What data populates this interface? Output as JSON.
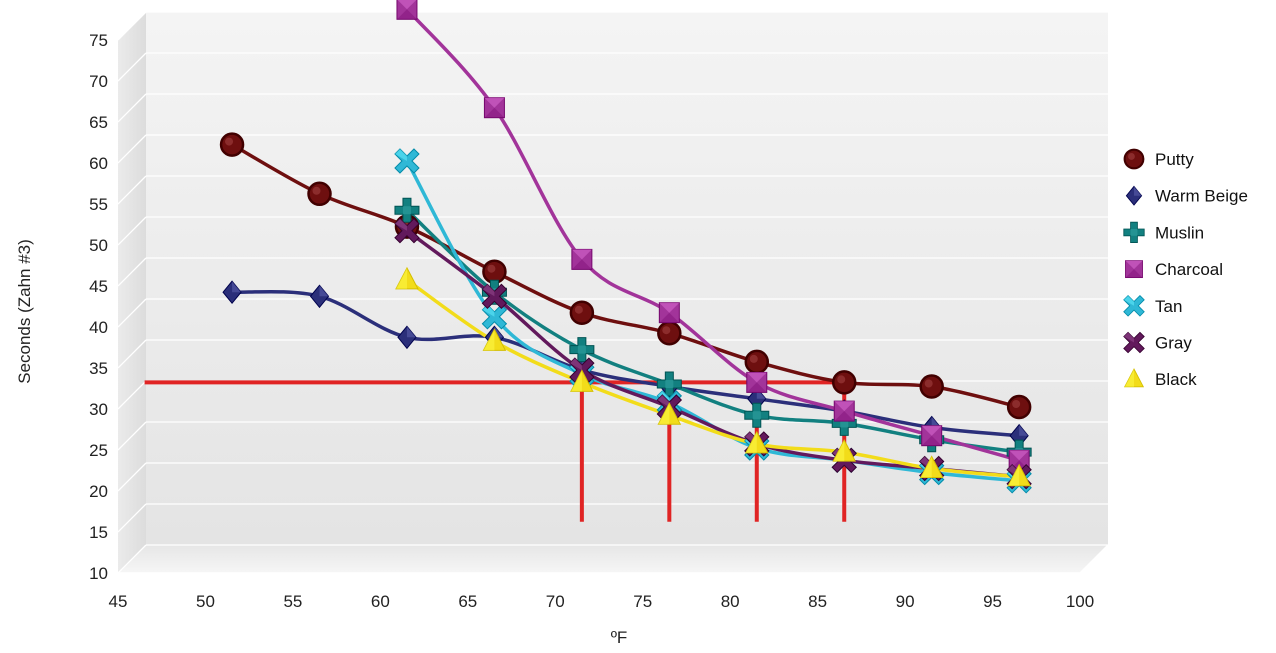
{
  "chart_data": {
    "type": "line",
    "title": "",
    "xlabel": "ºF",
    "ylabel": "Seconds (Zahn #3)",
    "xlim": [
      45,
      100
    ],
    "ylim": [
      10,
      75
    ],
    "x_ticks": [
      "45",
      "50",
      "55",
      "60",
      "65",
      "70",
      "75",
      "80",
      "85",
      "90",
      "95",
      "100"
    ],
    "y_ticks": [
      "10",
      "15",
      "20",
      "25",
      "30",
      "35",
      "40",
      "45",
      "50",
      "55",
      "60",
      "65",
      "70",
      "75"
    ],
    "grid": "horizontal",
    "legend_position": "right",
    "series": [
      {
        "name": "Putty",
        "color": "#6e0f0f",
        "marker": "circle",
        "x": [
          50,
          55,
          60,
          65,
          70,
          75,
          80,
          85,
          90,
          95
        ],
        "y": [
          59,
          53,
          49,
          43.5,
          38.5,
          36,
          32.5,
          30,
          29.5,
          27
        ]
      },
      {
        "name": "Warm Beige",
        "color": "#2b2f7a",
        "marker": "diamond",
        "x": [
          50,
          55,
          60,
          65,
          70,
          75,
          80,
          85,
          90,
          95
        ],
        "y": [
          41,
          40.5,
          35.5,
          35.5,
          31.5,
          29.5,
          28,
          26.5,
          24.5,
          23.5
        ]
      },
      {
        "name": "Muslin",
        "color": "#128080",
        "marker": "plus",
        "x": [
          60,
          65,
          70,
          75,
          80,
          85,
          90,
          95
        ],
        "y": [
          51,
          41,
          34,
          29.8,
          26,
          25,
          23,
          21.5
        ]
      },
      {
        "name": "Charcoal",
        "color": "#a2349a",
        "marker": "square",
        "x": [
          60,
          65,
          70,
          75,
          80,
          85,
          90,
          95
        ],
        "y": [
          75.5,
          63.5,
          45,
          38.5,
          30,
          26.5,
          23.5,
          20.5
        ]
      },
      {
        "name": "Tan",
        "color": "#2fb8d6",
        "marker": "x",
        "x": [
          60,
          65,
          70,
          75,
          80,
          85,
          90,
          95
        ],
        "y": [
          57,
          38,
          31,
          27.5,
          22,
          20.5,
          19,
          18
        ]
      },
      {
        "name": "Gray",
        "color": "#62195c",
        "marker": "x",
        "x": [
          60,
          65,
          70,
          75,
          80,
          85,
          90,
          95
        ],
        "y": [
          48.5,
          40.5,
          31.5,
          27,
          22.5,
          20.5,
          19.5,
          18.5
        ]
      },
      {
        "name": "Black",
        "color": "#f2dc1a",
        "marker": "triangle",
        "x": [
          60,
          65,
          70,
          75,
          80,
          85,
          90,
          95
        ],
        "y": [
          42.5,
          35,
          30,
          26,
          22.5,
          21.5,
          19.5,
          18.5
        ]
      }
    ],
    "reference_lines": [
      {
        "type": "horizontal",
        "y": 30,
        "x_from": 45,
        "x_to": 85,
        "color": "#e02424"
      },
      {
        "type": "vertical",
        "x": 70,
        "y_from": 13,
        "y_to": 30,
        "color": "#e02424"
      },
      {
        "type": "vertical",
        "x": 75,
        "y_from": 13,
        "y_to": 30,
        "color": "#e02424"
      },
      {
        "type": "vertical",
        "x": 80,
        "y_from": 13,
        "y_to": 30,
        "color": "#e02424"
      },
      {
        "type": "vertical",
        "x": 85,
        "y_from": 13,
        "y_to": 30,
        "color": "#e02424"
      }
    ]
  }
}
